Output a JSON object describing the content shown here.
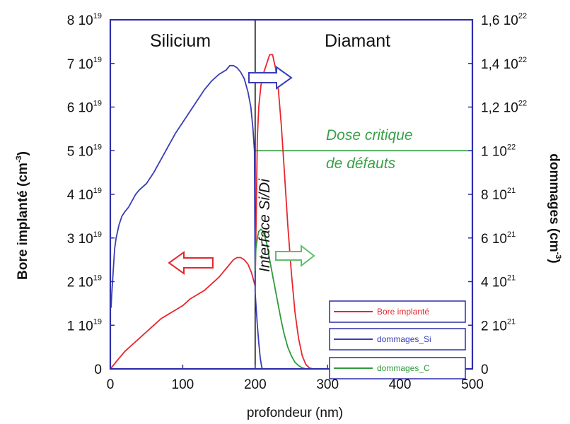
{
  "chart_data": {
    "type": "line",
    "xlabel": "profondeur (nm)",
    "ylabel_left": "Bore implanté (cm",
    "ylabel_left_exp": "-3",
    "ylabel_left_end": ")",
    "ylabel_right": "dommages (cm",
    "ylabel_right_exp": "-3",
    "ylabel_right_end": ")",
    "xlim": [
      0,
      500
    ],
    "ylim_left": [
      0,
      8e+19
    ],
    "ylim_right": [
      0,
      1.6e+22
    ],
    "x_ticks": [
      "0",
      "100",
      "200",
      "300",
      "400",
      "500"
    ],
    "x_tick_values": [
      0,
      100,
      200,
      300,
      400,
      500
    ],
    "y_left_ticks": [
      {
        "v": 0,
        "m": "0",
        "e": ""
      },
      {
        "v": 1e+19,
        "m": "1 10",
        "e": "19"
      },
      {
        "v": 2e+19,
        "m": "2 10",
        "e": "19"
      },
      {
        "v": 3e+19,
        "m": "3 10",
        "e": "19"
      },
      {
        "v": 4e+19,
        "m": "4 10",
        "e": "19"
      },
      {
        "v": 5e+19,
        "m": "5 10",
        "e": "19"
      },
      {
        "v": 6e+19,
        "m": "6 10",
        "e": "19"
      },
      {
        "v": 7e+19,
        "m": "7 10",
        "e": "19"
      },
      {
        "v": 8e+19,
        "m": "8 10",
        "e": "19"
      }
    ],
    "y_right_ticks": [
      {
        "v": 0,
        "m": "0",
        "e": ""
      },
      {
        "v": 2e+21,
        "m": "2 10",
        "e": "21"
      },
      {
        "v": 4e+21,
        "m": "4 10",
        "e": "21"
      },
      {
        "v": 6e+21,
        "m": "6 10",
        "e": "21"
      },
      {
        "v": 8e+21,
        "m": "8 10",
        "e": "21"
      },
      {
        "v": 1e+22,
        "m": "1 10",
        "e": "22"
      },
      {
        "v": 1.2e+22,
        "m": "1,2 10",
        "e": "22"
      },
      {
        "v": 1.4e+22,
        "m": "1,4 10",
        "e": "22"
      },
      {
        "v": 1.6e+22,
        "m": "1,6 10",
        "e": "22"
      }
    ],
    "interface_x": 200,
    "critical_dose": 1e+22,
    "series": [
      {
        "name": "Bore implanté",
        "axis": "left",
        "color": "#e8262b",
        "x": [
          0,
          10,
          20,
          30,
          40,
          50,
          60,
          70,
          80,
          90,
          100,
          110,
          120,
          130,
          140,
          150,
          160,
          170,
          175,
          180,
          185,
          190,
          195,
          200,
          203,
          205,
          208,
          212,
          216,
          220,
          224,
          228,
          232,
          236,
          240,
          245,
          250,
          255,
          260,
          265,
          270,
          275,
          280
        ],
        "y": [
          0,
          2e+18,
          4e+18,
          5.5e+18,
          7e+18,
          8.5e+18,
          1e+19,
          1.15e+19,
          1.25e+19,
          1.35e+19,
          1.45e+19,
          1.6e+19,
          1.7e+19,
          1.8e+19,
          1.95e+19,
          2.1e+19,
          2.3e+19,
          2.5e+19,
          2.55e+19,
          2.55e+19,
          2.5e+19,
          2.4e+19,
          2.2e+19,
          1.9e+19,
          5.3e+19,
          6e+19,
          6.5e+19,
          6.8e+19,
          7e+19,
          7.2e+19,
          7.2e+19,
          6.9e+19,
          6.4e+19,
          5.6e+19,
          4.6e+19,
          3.3e+19,
          2.2e+19,
          1.3e+19,
          7e+18,
          3e+18,
          1e+18,
          2e+17,
          0
        ]
      },
      {
        "name": "dommages_Si",
        "axis": "right",
        "color": "#3a3db5",
        "x": [
          1,
          2,
          4,
          6,
          8,
          12,
          16,
          20,
          25,
          30,
          35,
          40,
          50,
          60,
          70,
          80,
          90,
          100,
          110,
          120,
          130,
          140,
          150,
          160,
          165,
          170,
          175,
          180,
          185,
          190,
          194,
          197,
          199,
          200,
          201,
          203,
          205,
          207,
          209,
          210
        ],
        "y": [
          2.8e+21,
          3.4e+21,
          4.5e+21,
          5.5e+21,
          6e+21,
          6.6e+21,
          7e+21,
          7.2e+21,
          7.4e+21,
          7.7e+21,
          8e+21,
          8.2e+21,
          8.5e+21,
          9e+21,
          9.6e+21,
          1.02e+22,
          1.08e+22,
          1.13e+22,
          1.18e+22,
          1.23e+22,
          1.28e+22,
          1.32e+22,
          1.35e+22,
          1.37e+22,
          1.39e+22,
          1.39e+22,
          1.38e+22,
          1.36e+22,
          1.33e+22,
          1.27e+22,
          1.2e+22,
          1.1e+22,
          1e+22,
          3.5e+21,
          3e+21,
          2e+21,
          1.2e+21,
          5e+20,
          1e+20,
          0
        ]
      },
      {
        "name": "dommages_C",
        "axis": "right",
        "color": "#2f9a3c",
        "x": [
          200,
          201,
          203,
          205,
          208,
          211,
          214,
          217,
          220,
          224,
          228,
          232,
          236,
          240,
          245,
          250,
          255,
          260,
          265,
          270
        ],
        "y": [
          4.5e+21,
          5.5e+21,
          6e+21,
          6.3e+21,
          6.4e+21,
          6.3e+21,
          6e+21,
          5.6e+21,
          5e+21,
          4.3e+21,
          3.6e+21,
          2.9e+21,
          2.2e+21,
          1.6e+21,
          1e+21,
          6e+20,
          3e+20,
          1.5e+20,
          5e+19,
          0
        ]
      }
    ],
    "legend": [
      {
        "label": "Bore implanté",
        "color": "#e8262b"
      },
      {
        "label": "dommages_Si",
        "color": "#3a3db5"
      },
      {
        "label": "dommages_C",
        "color": "#2f9a3c"
      }
    ],
    "annotations": {
      "left_region": "Silicium",
      "right_region": "Diamant",
      "interface": "Interface Si/Di",
      "critical_line1": "Dose critique",
      "critical_line2": "de défauts"
    },
    "colors": {
      "frame": "#2d2dab",
      "critical": "#3aa048",
      "interface": "#111111"
    }
  }
}
